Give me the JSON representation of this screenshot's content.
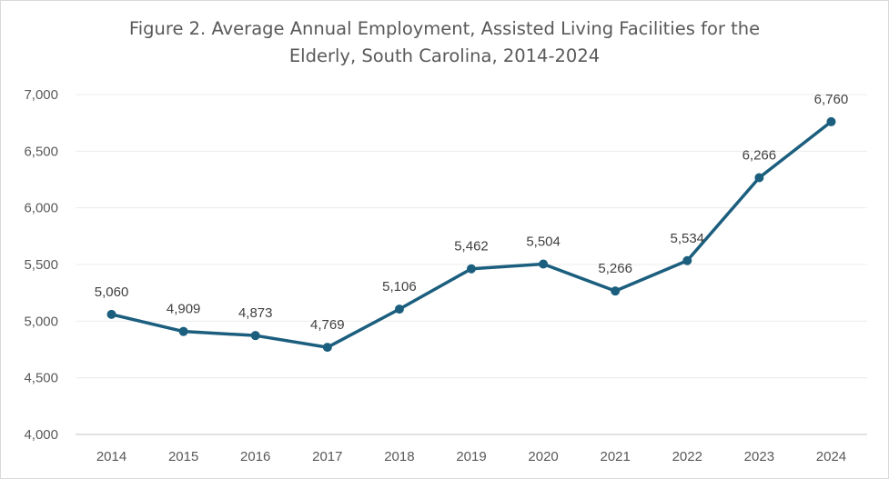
{
  "chart_data": {
    "type": "line",
    "title": "Figure 2. Average Annual Employment, Assisted Living Facilities for the Elderly, South Carolina, 2014-2024",
    "title_lines": [
      "Figure 2. Average Annual Employment, Assisted Living Facilities for the",
      "Elderly, South Carolina, 2014-2024"
    ],
    "xlabel": "",
    "ylabel": "",
    "categories": [
      "2014",
      "2015",
      "2016",
      "2017",
      "2018",
      "2019",
      "2020",
      "2021",
      "2022",
      "2023",
      "2024"
    ],
    "series": [
      {
        "name": "Average Annual Employment",
        "values": [
          5060,
          4909,
          4873,
          4769,
          5106,
          5462,
          5504,
          5266,
          5534,
          6266,
          6760
        ],
        "labels": [
          "5,060",
          "4,909",
          "4,873",
          "4,769",
          "5,106",
          "5,462",
          "5,504",
          "5,266",
          "5,534",
          "6,266",
          "6,760"
        ],
        "color": "#1b5e7e"
      }
    ],
    "ylim": [
      4000,
      7000
    ],
    "yticks": [
      4000,
      4500,
      5000,
      5500,
      6000,
      6500,
      7000
    ],
    "ytick_labels": [
      "4,000",
      "4,500",
      "5,000",
      "5,500",
      "6,000",
      "6,500",
      "7,000"
    ],
    "grid": true,
    "legend": "none"
  }
}
